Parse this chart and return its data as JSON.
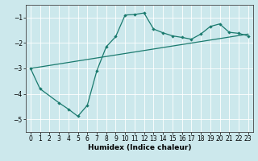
{
  "xlabel": "Humidex (Indice chaleur)",
  "background_color": "#cce8ec",
  "line_color": "#1a7a6e",
  "xlim": [
    -0.5,
    23.5
  ],
  "ylim": [
    -5.5,
    -0.5
  ],
  "yticks": [
    -5,
    -4,
    -3,
    -2,
    -1
  ],
  "xticks": [
    0,
    1,
    2,
    3,
    4,
    5,
    6,
    7,
    8,
    9,
    10,
    11,
    12,
    13,
    14,
    15,
    16,
    17,
    18,
    19,
    20,
    21,
    22,
    23
  ],
  "curve1_x": [
    0,
    1,
    3,
    4,
    5,
    6,
    7,
    8,
    9,
    10,
    11,
    12,
    13,
    14,
    15,
    16,
    17,
    18,
    19,
    20,
    21,
    22,
    23
  ],
  "curve1_y": [
    -3.0,
    -3.8,
    -4.35,
    -4.6,
    -4.88,
    -4.45,
    -3.1,
    -2.15,
    -1.75,
    -0.9,
    -0.88,
    -0.82,
    -1.45,
    -1.6,
    -1.72,
    -1.78,
    -1.85,
    -1.65,
    -1.35,
    -1.25,
    -1.58,
    -1.62,
    -1.72
  ],
  "curve2_x": [
    0,
    23
  ],
  "curve2_y": [
    -3.0,
    -1.65
  ]
}
